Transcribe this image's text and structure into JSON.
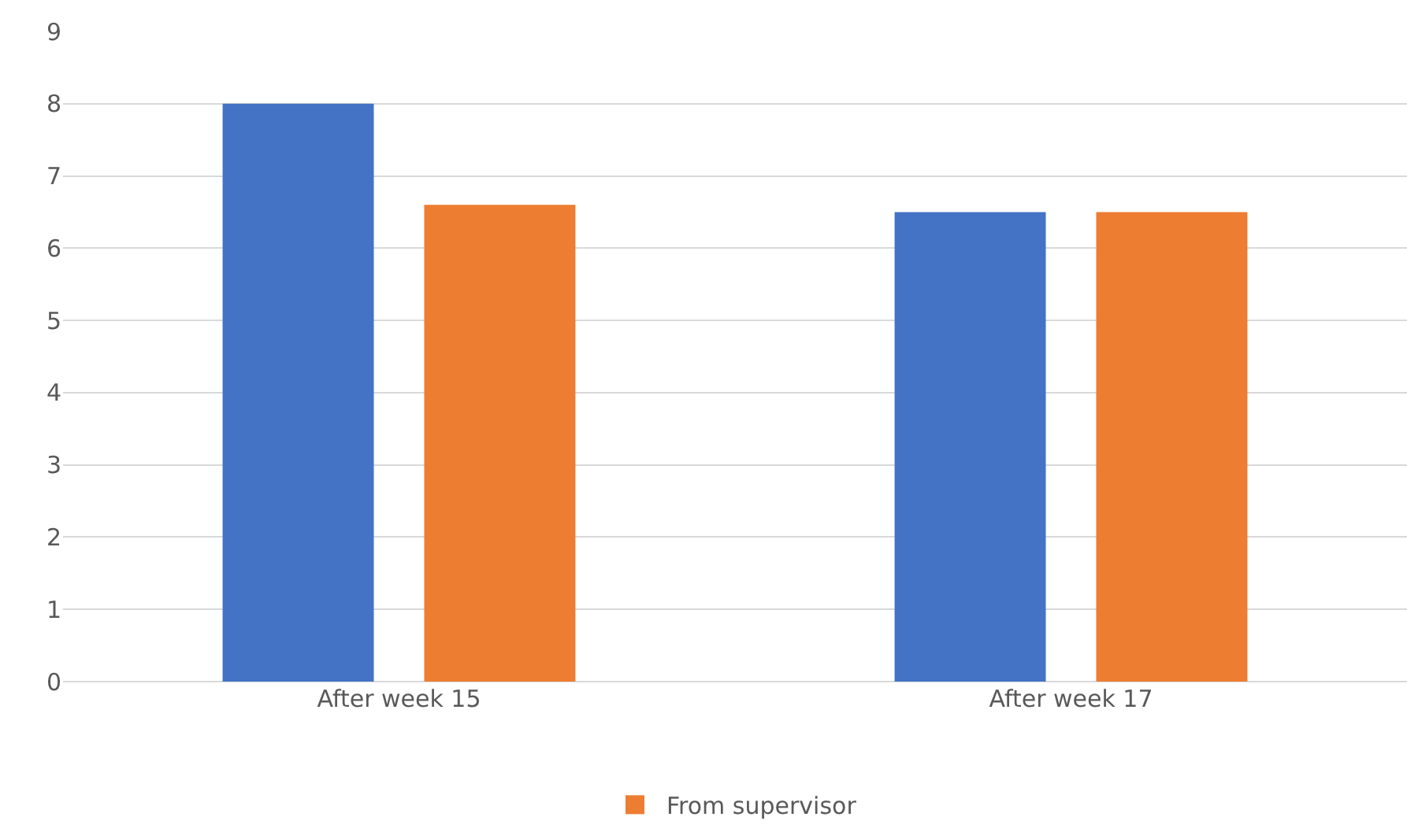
{
  "chart_data": {
    "type": "bar",
    "categories": [
      "After week 15",
      "After week 17"
    ],
    "series": [
      {
        "color": "#4472c4",
        "values": [
          8,
          6.5
        ]
      },
      {
        "name": "From supervisor",
        "color": "#ed7d31",
        "values": [
          6.6,
          6.5
        ]
      }
    ],
    "ylim": [
      0,
      9
    ],
    "yticks": [
      0,
      1,
      2,
      3,
      4,
      5,
      6,
      7,
      8,
      9
    ],
    "grid": "y",
    "legend": "bottom"
  }
}
